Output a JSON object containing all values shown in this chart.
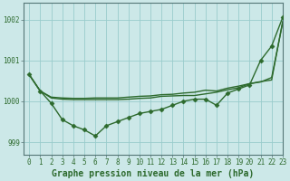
{
  "background_color": "#cce8e8",
  "grid_color": "#99cccc",
  "line_color": "#2d6a2d",
  "title": "Graphe pression niveau de la mer (hPa)",
  "xlim": [
    -0.5,
    23
  ],
  "ylim": [
    998.7,
    1002.4
  ],
  "yticks": [
    999,
    1000,
    1001,
    1002
  ],
  "xticks": [
    0,
    1,
    2,
    3,
    4,
    5,
    6,
    7,
    8,
    9,
    10,
    11,
    12,
    13,
    14,
    15,
    16,
    17,
    18,
    19,
    20,
    21,
    22,
    23
  ],
  "series_with_markers": [
    [
      1000.65,
      1000.25,
      999.95,
      999.55,
      999.4,
      999.3,
      999.15,
      999.4,
      999.5,
      999.6,
      999.7,
      999.75,
      999.8,
      999.9,
      1000.0,
      1000.05,
      1000.05,
      999.9,
      1000.2,
      1000.3,
      1000.4,
      1001.0,
      1001.35,
      1002.05
    ]
  ],
  "series_smooth": [
    [
      1000.65,
      1000.25,
      1000.1,
      1000.08,
      1000.07,
      1000.07,
      1000.08,
      1000.08,
      1000.08,
      1000.1,
      1000.12,
      1000.13,
      1000.16,
      1000.17,
      1000.2,
      1000.22,
      1000.27,
      1000.25,
      1000.32,
      1000.37,
      1000.43,
      1000.48,
      1000.52,
      1001.95
    ],
    [
      1000.65,
      1000.25,
      1000.08,
      1000.05,
      1000.04,
      1000.04,
      1000.04,
      1000.04,
      1000.04,
      1000.05,
      1000.07,
      1000.08,
      1000.12,
      1000.13,
      1000.14,
      1000.14,
      1000.18,
      1000.22,
      1000.28,
      1000.33,
      1000.43,
      1000.47,
      1000.58,
      1001.92
    ]
  ],
  "marker": "D",
  "marker_size": 2.5,
  "linewidth_marker": 1.0,
  "linewidth_smooth": 1.0,
  "title_fontsize": 7,
  "tick_fontsize": 5.5
}
